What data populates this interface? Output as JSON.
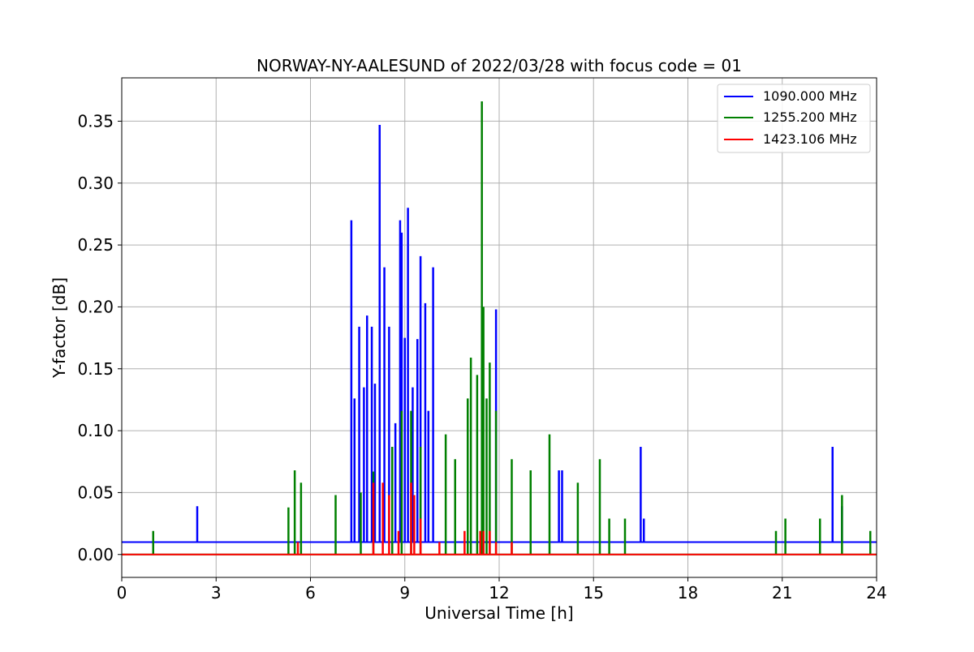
{
  "chart_data": {
    "type": "line",
    "title": "NORWAY-NY-AALESUND of 2022/03/28 with focus code = 01",
    "xlabel": "Universal Time [h]",
    "ylabel": "Y-factor [dB]",
    "xlim": [
      0,
      24
    ],
    "ylim": [
      -0.0185,
      0.385
    ],
    "xticks": [
      0,
      3,
      6,
      9,
      12,
      15,
      18,
      21,
      24
    ],
    "xtick_labels": [
      "0",
      "3",
      "6",
      "9",
      "12",
      "15",
      "18",
      "21",
      "24"
    ],
    "yticks": [
      0.0,
      0.05,
      0.1,
      0.15,
      0.2,
      0.25,
      0.3,
      0.35
    ],
    "ytick_labels": [
      "0.00",
      "0.05",
      "0.10",
      "0.15",
      "0.20",
      "0.25",
      "0.30",
      "0.35"
    ],
    "grid": true,
    "legend_position": "top-right",
    "series": [
      {
        "name": "1090.000 MHz",
        "color": "#0000ff",
        "baseline": 0.01,
        "peaks": [
          [
            2.4,
            0.039
          ],
          [
            7.3,
            0.27
          ],
          [
            7.4,
            0.126
          ],
          [
            7.55,
            0.184
          ],
          [
            7.7,
            0.135
          ],
          [
            7.8,
            0.193
          ],
          [
            7.95,
            0.184
          ],
          [
            8.05,
            0.138
          ],
          [
            8.2,
            0.347
          ],
          [
            8.35,
            0.232
          ],
          [
            8.5,
            0.184
          ],
          [
            8.7,
            0.106
          ],
          [
            8.85,
            0.27
          ],
          [
            8.9,
            0.26
          ],
          [
            9.0,
            0.175
          ],
          [
            9.1,
            0.28
          ],
          [
            9.25,
            0.135
          ],
          [
            9.4,
            0.174
          ],
          [
            9.5,
            0.241
          ],
          [
            9.65,
            0.203
          ],
          [
            9.75,
            0.116
          ],
          [
            9.9,
            0.232
          ],
          [
            11.9,
            0.198
          ],
          [
            13.9,
            0.068
          ],
          [
            14.0,
            0.068
          ],
          [
            16.5,
            0.087
          ],
          [
            16.6,
            0.029
          ],
          [
            22.6,
            0.087
          ],
          [
            22.9,
            0.039
          ]
        ]
      },
      {
        "name": "1255.200 MHz",
        "color": "#008000",
        "baseline": 0.0,
        "peaks": [
          [
            1.0,
            0.019
          ],
          [
            5.3,
            0.038
          ],
          [
            5.5,
            0.068
          ],
          [
            5.7,
            0.058
          ],
          [
            6.8,
            0.048
          ],
          [
            7.6,
            0.05
          ],
          [
            8.0,
            0.067
          ],
          [
            8.6,
            0.087
          ],
          [
            8.9,
            0.116
          ],
          [
            9.2,
            0.116
          ],
          [
            9.5,
            0.087
          ],
          [
            10.3,
            0.097
          ],
          [
            10.6,
            0.077
          ],
          [
            11.0,
            0.126
          ],
          [
            11.1,
            0.159
          ],
          [
            11.3,
            0.145
          ],
          [
            11.45,
            0.366
          ],
          [
            11.5,
            0.2
          ],
          [
            11.6,
            0.126
          ],
          [
            11.7,
            0.155
          ],
          [
            11.9,
            0.116
          ],
          [
            12.4,
            0.077
          ],
          [
            13.0,
            0.068
          ],
          [
            13.6,
            0.097
          ],
          [
            14.5,
            0.058
          ],
          [
            15.2,
            0.077
          ],
          [
            15.5,
            0.029
          ],
          [
            16.0,
            0.029
          ],
          [
            20.8,
            0.019
          ],
          [
            21.1,
            0.029
          ],
          [
            22.2,
            0.029
          ],
          [
            22.9,
            0.048
          ],
          [
            23.8,
            0.019
          ]
        ]
      },
      {
        "name": "1423.106 MHz",
        "color": "#ff0000",
        "baseline": 0.0,
        "peaks": [
          [
            5.6,
            0.01
          ],
          [
            8.0,
            0.058
          ],
          [
            8.3,
            0.058
          ],
          [
            8.5,
            0.048
          ],
          [
            8.8,
            0.019
          ],
          [
            9.2,
            0.058
          ],
          [
            9.3,
            0.048
          ],
          [
            9.5,
            0.029
          ],
          [
            10.1,
            0.01
          ],
          [
            10.9,
            0.019
          ],
          [
            11.4,
            0.019
          ],
          [
            11.5,
            0.019
          ],
          [
            11.7,
            0.019
          ],
          [
            11.9,
            0.01
          ],
          [
            12.4,
            0.01
          ]
        ]
      }
    ]
  }
}
